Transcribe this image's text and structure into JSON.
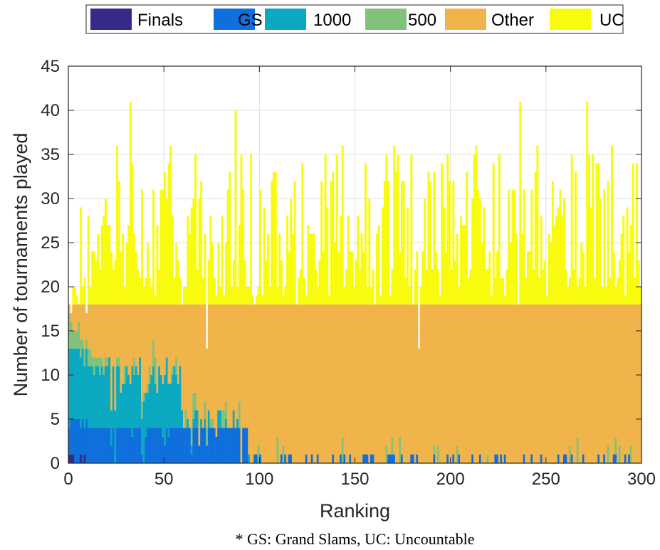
{
  "chart_data": {
    "type": "bar",
    "stacked": true,
    "xlabel": "Ranking",
    "ylabel": "Number of tournaments played",
    "xlim": [
      0,
      300
    ],
    "ylim": [
      0,
      45
    ],
    "xticks": [
      0,
      50,
      100,
      150,
      200,
      250,
      300
    ],
    "yticks": [
      0,
      5,
      10,
      15,
      20,
      25,
      30,
      35,
      40,
      45
    ],
    "grid": true,
    "legend_position": "top",
    "note": "* GS: Grand Slams, UC: Uncountable",
    "series": [
      {
        "name": "Finals",
        "color": "#352a87"
      },
      {
        "name": "GS",
        "color": "#0f6fdc"
      },
      {
        "name": "1000",
        "color": "#0ba9c1"
      },
      {
        "name": "500",
        "color": "#80c27c"
      },
      {
        "name": "Other",
        "color": "#f1b44a"
      },
      {
        "name": "UC",
        "color": "#f9fb0e"
      }
    ],
    "bin_width": 1,
    "stack_top_other_typical": 18,
    "players": {
      "ranks": "1-300",
      "finals": [
        1,
        1,
        1,
        0,
        0,
        0,
        1,
        0,
        1,
        0,
        0,
        0,
        0,
        0,
        0,
        0,
        0,
        0,
        0,
        0
      ],
      "gs_sample": [
        4,
        5,
        5,
        5,
        5,
        5,
        4,
        5,
        4,
        5,
        4,
        4,
        4,
        4,
        4,
        4,
        4,
        4,
        4,
        4
      ],
      "thousand_sample": [
        9,
        8,
        8,
        8,
        8,
        8,
        8,
        8,
        7,
        8,
        7,
        7,
        7,
        6,
        7,
        7,
        6,
        7,
        6,
        7
      ],
      "five_hundred_sample": [
        4,
        3,
        2,
        2,
        2,
        3,
        2,
        1,
        2,
        1,
        2,
        2,
        1,
        2,
        1,
        1,
        2,
        1,
        1,
        1
      ],
      "total_sample": [
        18,
        17,
        20,
        20,
        19,
        18,
        29,
        20,
        21,
        17,
        28,
        20,
        24,
        24,
        23,
        26,
        22,
        27,
        28,
        30
      ],
      "peak_totals": [
        {
          "rank": 33,
          "total": 41
        },
        {
          "rank": 88,
          "total": 40
        },
        {
          "rank": 237,
          "total": 41
        },
        {
          "rank": 272,
          "total": 41
        }
      ],
      "total_range": [
        13,
        41
      ],
      "low_totals": [
        {
          "rank": 73,
          "total": 13
        },
        {
          "rank": 184,
          "total": 13
        }
      ]
    }
  }
}
